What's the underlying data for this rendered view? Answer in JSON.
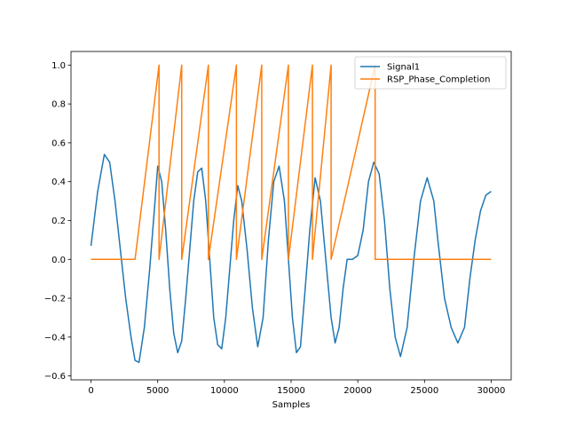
{
  "chart_data": {
    "type": "line",
    "title": "",
    "xlabel": "Samples",
    "ylabel": "",
    "xlim": [
      -1500,
      31500
    ],
    "ylim": [
      -0.62,
      1.07
    ],
    "xticks": [
      0,
      5000,
      10000,
      15000,
      20000,
      25000,
      30000
    ],
    "yticks": [
      -0.6,
      -0.4,
      -0.2,
      0.0,
      0.2,
      0.4,
      0.6,
      0.8,
      1.0
    ],
    "xtick_labels": [
      "0",
      "5000",
      "10000",
      "15000",
      "20000",
      "25000",
      "30000"
    ],
    "ytick_labels": [
      "−0.6",
      "−0.4",
      "−0.2",
      "0.0",
      "0.2",
      "0.4",
      "0.6",
      "0.8",
      "1.0"
    ],
    "grid": false,
    "legend_position": "top-right",
    "series": [
      {
        "name": "Signal1",
        "color": "#1f77b4",
        "x": [
          0,
          500,
          1000,
          1400,
          1800,
          2200,
          2600,
          3000,
          3300,
          3600,
          4000,
          4400,
          4800,
          5000,
          5300,
          5600,
          5900,
          6200,
          6500,
          6800,
          7100,
          7400,
          7700,
          8000,
          8300,
          8600,
          8900,
          9200,
          9500,
          9800,
          10100,
          10400,
          10700,
          11000,
          11300,
          11700,
          12100,
          12500,
          12900,
          13300,
          13700,
          14100,
          14500,
          14800,
          15100,
          15400,
          15700,
          16000,
          16400,
          16800,
          17200,
          17600,
          18000,
          18300,
          18600,
          18900,
          19200,
          19600,
          20000,
          20400,
          20800,
          21200,
          21600,
          22000,
          22400,
          22800,
          23200,
          23700,
          24200,
          24700,
          25200,
          25700,
          26000,
          26500,
          27000,
          27500,
          28000,
          28400,
          28800,
          29200,
          29600,
          30000
        ],
        "y": [
          0.07,
          0.35,
          0.54,
          0.5,
          0.3,
          0.05,
          -0.2,
          -0.4,
          -0.52,
          -0.53,
          -0.35,
          -0.05,
          0.3,
          0.48,
          0.4,
          0.15,
          -0.15,
          -0.38,
          -0.48,
          -0.42,
          -0.2,
          0.05,
          0.3,
          0.45,
          0.47,
          0.3,
          0.0,
          -0.3,
          -0.44,
          -0.46,
          -0.3,
          -0.05,
          0.2,
          0.38,
          0.3,
          0.05,
          -0.25,
          -0.45,
          -0.3,
          0.1,
          0.4,
          0.48,
          0.3,
          0.0,
          -0.3,
          -0.48,
          -0.45,
          -0.2,
          0.15,
          0.42,
          0.3,
          0.0,
          -0.3,
          -0.43,
          -0.35,
          -0.15,
          0.0,
          0.0,
          0.02,
          0.15,
          0.4,
          0.5,
          0.44,
          0.2,
          -0.15,
          -0.4,
          -0.5,
          -0.35,
          0.0,
          0.3,
          0.42,
          0.3,
          0.1,
          -0.2,
          -0.35,
          -0.43,
          -0.35,
          -0.1,
          0.1,
          0.25,
          0.33,
          0.35
        ]
      },
      {
        "name": "RSP_Phase_Completion",
        "color": "#ff7f0e",
        "x": [
          0,
          3300,
          5100,
          5100,
          6800,
          6800,
          8800,
          8800,
          10900,
          10900,
          12800,
          12800,
          14800,
          14800,
          16600,
          16600,
          18000,
          18000,
          21300,
          21300,
          30000
        ],
        "y": [
          0.0,
          0.0,
          1.0,
          0.0,
          1.0,
          0.0,
          1.0,
          0.0,
          1.0,
          0.0,
          1.0,
          0.0,
          1.0,
          0.0,
          1.0,
          0.0,
          1.0,
          0.0,
          1.0,
          0.0,
          0.0
        ]
      }
    ]
  }
}
